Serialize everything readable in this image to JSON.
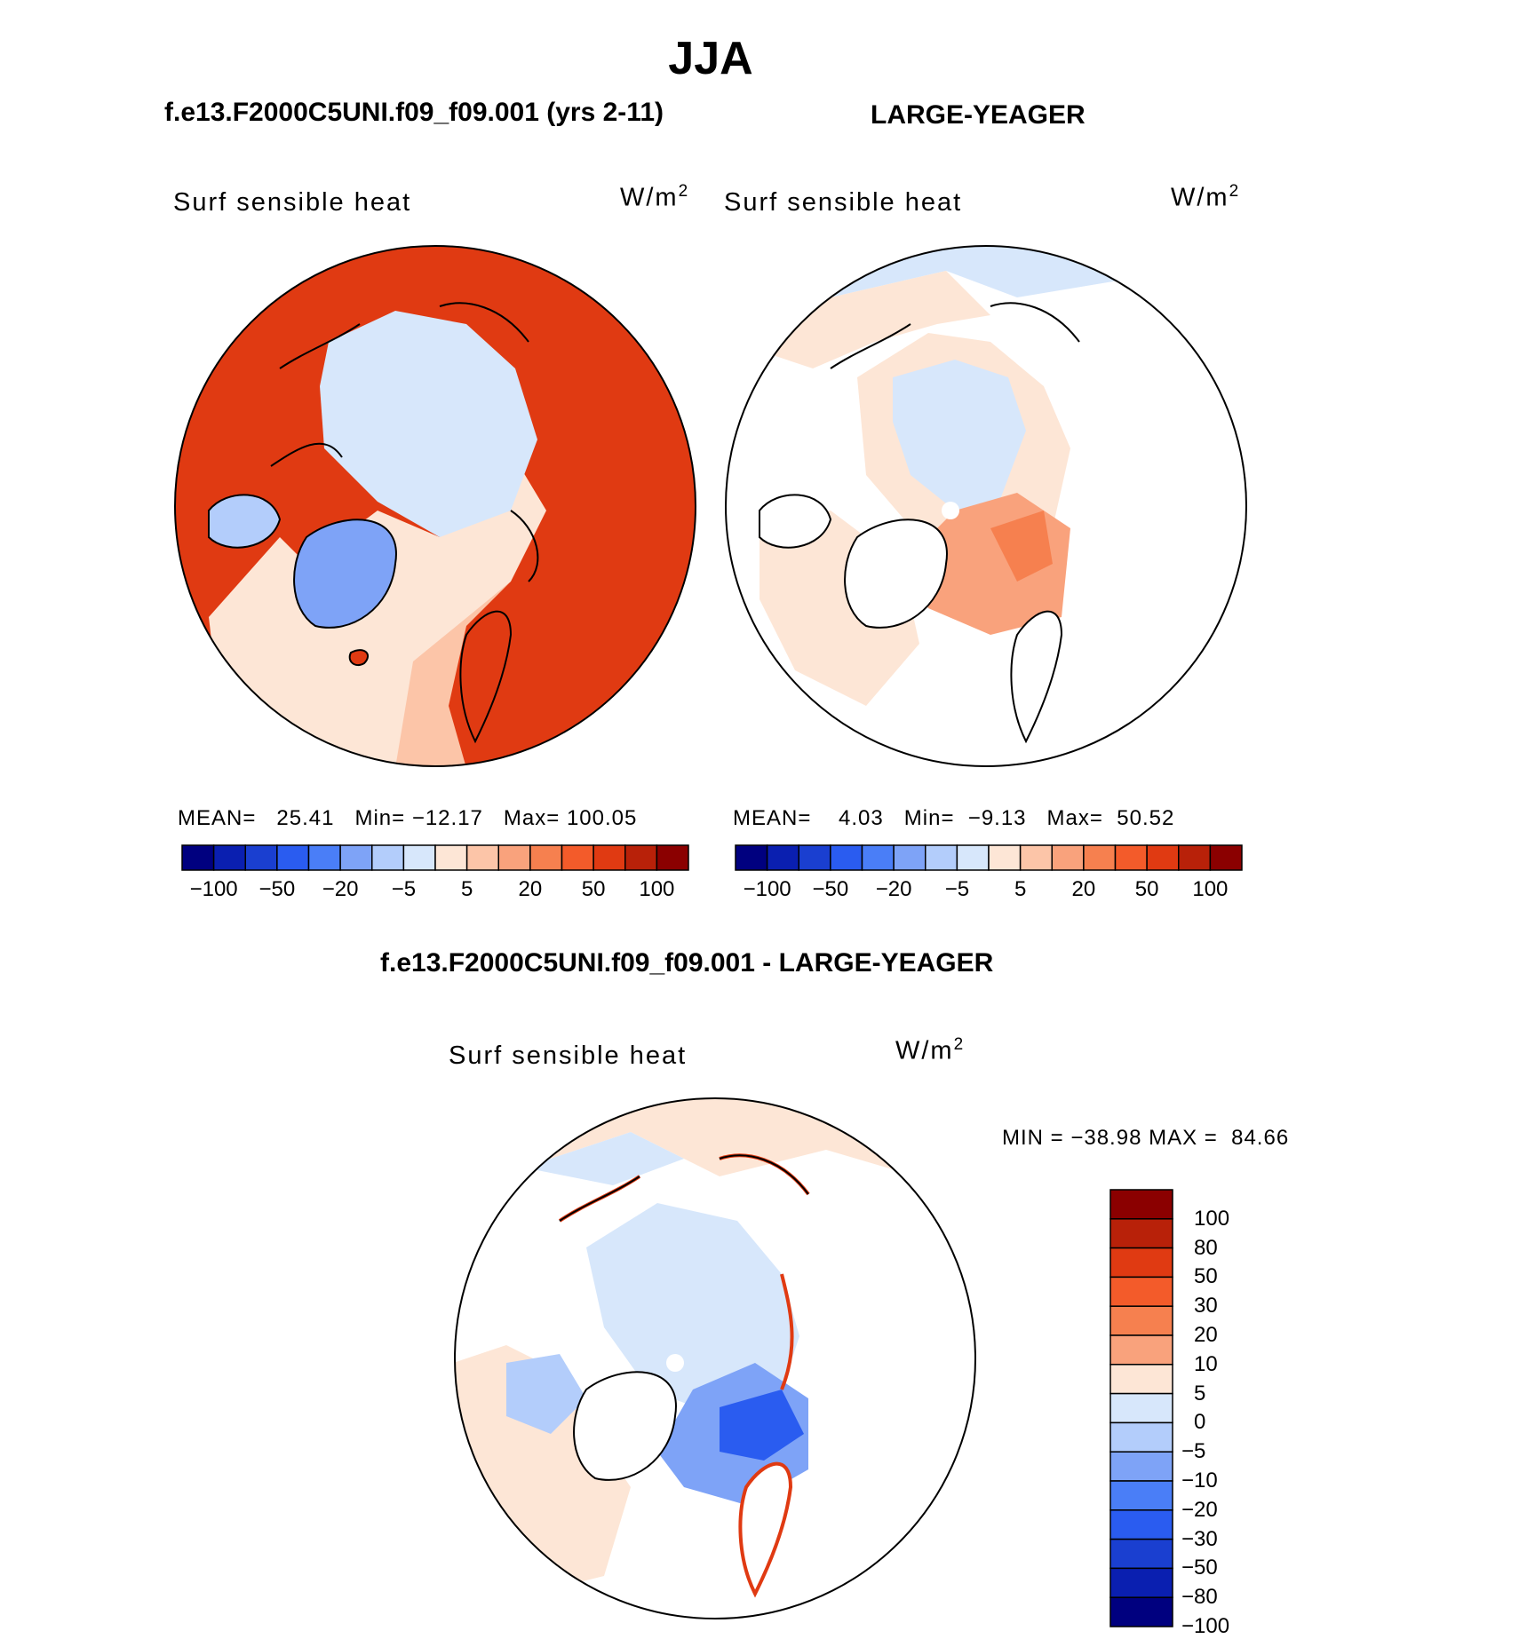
{
  "figure": {
    "title": "JJA"
  },
  "panels": {
    "left": {
      "title": "f.e13.F2000C5UNI.f09_f09.001 (yrs 2-11)",
      "variable": "Surf sensible heat",
      "units": "W/m",
      "units_exp": "2",
      "stats": {
        "mean_label": "MEAN=",
        "mean": "25.41",
        "min_label": "Min=",
        "min": "−12.17",
        "max_label": "Max=",
        "max": "100.05"
      }
    },
    "right": {
      "title": "LARGE-YEAGER",
      "variable": "Surf sensible heat",
      "units": "W/m",
      "units_exp": "2",
      "stats": {
        "mean_label": "MEAN=",
        "mean": "4.03",
        "min_label": "Min=",
        "min": "−9.13",
        "max_label": "Max=",
        "max": "50.52"
      }
    },
    "diff": {
      "title": "f.e13.F2000C5UNI.f09_f09.001 - LARGE-YEAGER",
      "variable": "Surf sensible heat",
      "units": "W/m",
      "units_exp": "2",
      "minmax": "MIN = −38.98 MAX =  84.66"
    }
  },
  "colorbar_top": {
    "colors": [
      "#00007f",
      "#0a1fb0",
      "#1a3fd0",
      "#2a5cf0",
      "#4a7ef7",
      "#7ea3f7",
      "#b3cdfb",
      "#d7e7fb",
      "#fde6d6",
      "#fcc5a8",
      "#f9a27c",
      "#f6804f",
      "#f35b2a",
      "#e03a12",
      "#b82109",
      "#8b0000"
    ],
    "tick_labels": [
      "−100",
      "−50",
      "−20",
      "−5",
      "5",
      "20",
      "50",
      "100"
    ]
  },
  "colorbar_diff": {
    "colors": [
      "#8b0000",
      "#b82109",
      "#e03a12",
      "#f35b2a",
      "#f6804f",
      "#f9a27c",
      "#fde6d6",
      "#d7e7fb",
      "#b3cdfb",
      "#7ea3f7",
      "#4a7ef7",
      "#2a5cf0",
      "#1a3fd0",
      "#0a1fb0",
      "#00007f"
    ],
    "tick_labels": [
      "100",
      "80",
      "50",
      "30",
      "20",
      "10",
      "5",
      "0",
      "−5",
      "−10",
      "−20",
      "−30",
      "−50",
      "−80",
      "−100"
    ]
  },
  "map_colors": {
    "land_warm": "#e03a12",
    "ocean_light": "#d7e7fb",
    "ocean_pale_warm": "#fde6d6",
    "greenland_cool": "#7ea3f7",
    "moderate_warm": "#f9a27c",
    "strong_cool": "#2a5cf0"
  }
}
